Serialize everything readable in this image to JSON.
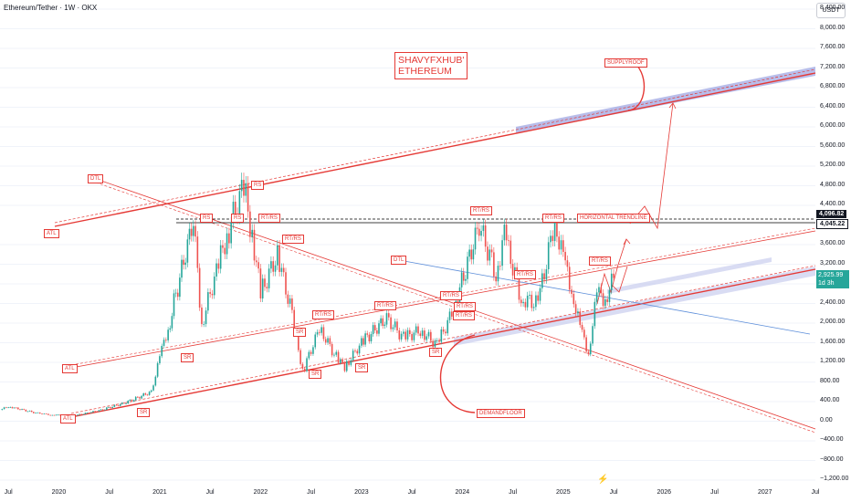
{
  "header": {
    "title": "Ethereum/Tether · 1W · OKX",
    "currency": "USDT"
  },
  "brand": {
    "line1": "SHAVYFXHUB'",
    "line2": "ETHEREUM"
  },
  "y_axis_labels": [
    "8,400.00",
    "8,000.00",
    "7,600.00",
    "7,200.00",
    "6,800.00",
    "6,400.00",
    "6,000.00",
    "5,600.00",
    "5,200.00",
    "4,800.00",
    "4,400.00",
    "3,600.00",
    "3,200.00",
    "2,800.00",
    "2,400.00",
    "2,000.00",
    "1,600.00",
    "1,200.00",
    "800.00",
    "400.00",
    "0.00",
    "−400.00",
    "−800.00",
    "−1,200.00"
  ],
  "x_axis_labels": [
    "Jul",
    "2020",
    "Jul",
    "2021",
    "Jul",
    "2022",
    "Jul",
    "2023",
    "Jul",
    "2024",
    "Jul",
    "2025",
    "Jul",
    "2026",
    "Jul",
    "2027",
    "Jul"
  ],
  "price_badges": {
    "level_high": "4,096.82",
    "level_low": "4,045.22",
    "current_price": "2,925.99",
    "countdown": "1d 3h"
  },
  "annotations": {
    "supplyroof": "SUPPLYROOF",
    "demandfloor": "DEMANDFLOOR",
    "horizontal_trendline": "HORIZONTAL TRENDLINE",
    "dtl_left": "DTL",
    "dtl_mid": "DTL",
    "atl_top": "ATL",
    "atl_mid": "ATL",
    "atl_bottom": "ATL",
    "rs_2021_a": "RS",
    "rs_2021_b": "RS",
    "rs_2021_c": "RS",
    "rtrs_2021": "RT/RS",
    "rtrs_2022": "RT/RS",
    "rtrs_2022_b": "RT/RS",
    "rtrs_2023": "RT/RS",
    "rtrs_2024_a": "RT/RS",
    "rtrs_2024_b": "RT/RS",
    "rtrs_2024_c": "RT/RS",
    "rtrs_2024_d": "RT/RS",
    "rtrs_2025_a": "RT/RS",
    "rtrs_2025_b": "RT/RS",
    "sr_1": "SR",
    "sr_2": "SR",
    "sr_3": "SR",
    "sr_4": "SR",
    "sr_5": "SR",
    "sr_6": "SR"
  },
  "colors": {
    "bull": "#26a69a",
    "bear": "#ef5350",
    "trend_red": "#e53935",
    "channel_blue": "#7e87d8",
    "dtl_blue": "#5b8dd9",
    "black": "#000000"
  },
  "chart_data": {
    "type": "candlestick",
    "title": "Ethereum/Tether · 1W · OKX",
    "ylim": [
      -1200,
      8400
    ],
    "x_range": [
      "2019-06",
      "2027-07"
    ],
    "horizontal_levels": [
      4096.82,
      4045.22
    ],
    "current_price": 2925.99,
    "price_path": [
      {
        "t": "2019-06",
        "p": 230
      },
      {
        "t": "2019-07",
        "p": 300
      },
      {
        "t": "2019-10",
        "p": 180
      },
      {
        "t": "2019-12",
        "p": 130
      },
      {
        "t": "2020-03",
        "p": 120
      },
      {
        "t": "2020-06",
        "p": 230
      },
      {
        "t": "2020-09",
        "p": 380
      },
      {
        "t": "2020-12",
        "p": 600
      },
      {
        "t": "2021-01",
        "p": 1300
      },
      {
        "t": "2021-02",
        "p": 1900
      },
      {
        "t": "2021-05",
        "p": 4100
      },
      {
        "t": "2021-06",
        "p": 2000
      },
      {
        "t": "2021-08",
        "p": 3200
      },
      {
        "t": "2021-09",
        "p": 3800
      },
      {
        "t": "2021-11",
        "p": 4800
      },
      {
        "t": "2021-12",
        "p": 3800
      },
      {
        "t": "2022-01",
        "p": 2600
      },
      {
        "t": "2022-03",
        "p": 3400
      },
      {
        "t": "2022-05",
        "p": 2000
      },
      {
        "t": "2022-06",
        "p": 1000
      },
      {
        "t": "2022-08",
        "p": 1900
      },
      {
        "t": "2022-10",
        "p": 1300
      },
      {
        "t": "2022-11",
        "p": 1100
      },
      {
        "t": "2023-01",
        "p": 1600
      },
      {
        "t": "2023-04",
        "p": 2100
      },
      {
        "t": "2023-06",
        "p": 1700
      },
      {
        "t": "2023-08",
        "p": 1850
      },
      {
        "t": "2023-10",
        "p": 1550
      },
      {
        "t": "2023-12",
        "p": 2300
      },
      {
        "t": "2024-03",
        "p": 4000
      },
      {
        "t": "2024-05",
        "p": 3000
      },
      {
        "t": "2024-06",
        "p": 3800
      },
      {
        "t": "2024-08",
        "p": 2500
      },
      {
        "t": "2024-10",
        "p": 2400
      },
      {
        "t": "2024-12",
        "p": 4100
      },
      {
        "t": "2025-01",
        "p": 3300
      },
      {
        "t": "2025-02",
        "p": 2700
      },
      {
        "t": "2025-03",
        "p": 1900
      },
      {
        "t": "2025-04",
        "p": 1400
      },
      {
        "t": "2025-05",
        "p": 2600
      },
      {
        "t": "2025-06",
        "p": 2500
      },
      {
        "t": "2025-07",
        "p": 2926
      }
    ]
  }
}
